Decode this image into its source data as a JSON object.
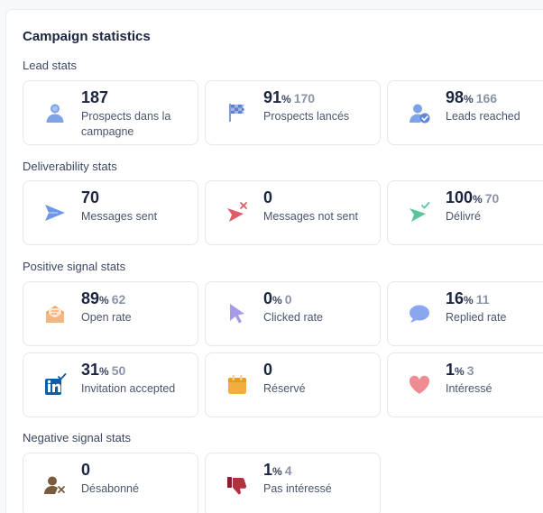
{
  "title": "Campaign statistics",
  "sections": {
    "lead": "Lead stats",
    "deliverability": "Deliverability stats",
    "positive": "Positive signal stats",
    "negative": "Negative signal stats"
  },
  "cards": {
    "prospects": {
      "value": "187",
      "label": "Prospects dans la campagne"
    },
    "launched": {
      "value": "91",
      "pct": "%",
      "secondary": "170",
      "label": "Prospects lancés"
    },
    "reached": {
      "value": "98",
      "pct": "%",
      "secondary": "166",
      "label": "Leads reached"
    },
    "sent": {
      "value": "70",
      "label": "Messages sent"
    },
    "not_sent": {
      "value": "0",
      "label": "Messages not sent"
    },
    "delivered": {
      "value": "100",
      "pct": "%",
      "secondary": "70",
      "label": "Délivré"
    },
    "open": {
      "value": "89",
      "pct": "%",
      "secondary": "62",
      "label": "Open rate"
    },
    "clicked": {
      "value": "0",
      "pct": "%",
      "secondary": "0",
      "label": "Clicked rate"
    },
    "replied": {
      "value": "16",
      "pct": "%",
      "secondary": "11",
      "label": "Replied rate"
    },
    "invitation": {
      "value": "31",
      "pct": "%",
      "secondary": "50",
      "label": "Invitation accepted"
    },
    "reserve": {
      "value": "0",
      "label": "Réservé"
    },
    "interested": {
      "value": "1",
      "pct": "%",
      "secondary": "3",
      "label": "Intéressé"
    },
    "unsubscribed": {
      "value": "0",
      "label": "Désabonné"
    },
    "not_interested": {
      "value": "1",
      "pct": "%",
      "secondary": "4",
      "label": "Pas intéressé"
    }
  },
  "colors": {
    "user": "#7ea2e6",
    "flag": "#7f9bd8",
    "send": "#6f96e8",
    "fail": "#e05a68",
    "deliver": "#5cc49a",
    "mail": "#f0a36a",
    "cursor": "#a99ae8",
    "chat": "#8aa6ee",
    "linkedin": "#0a5fa8",
    "calendar": "#f2ad3f",
    "heart": "#ef8c93",
    "unsub": "#7a5b3c",
    "thumb": "#8b1e2e"
  }
}
